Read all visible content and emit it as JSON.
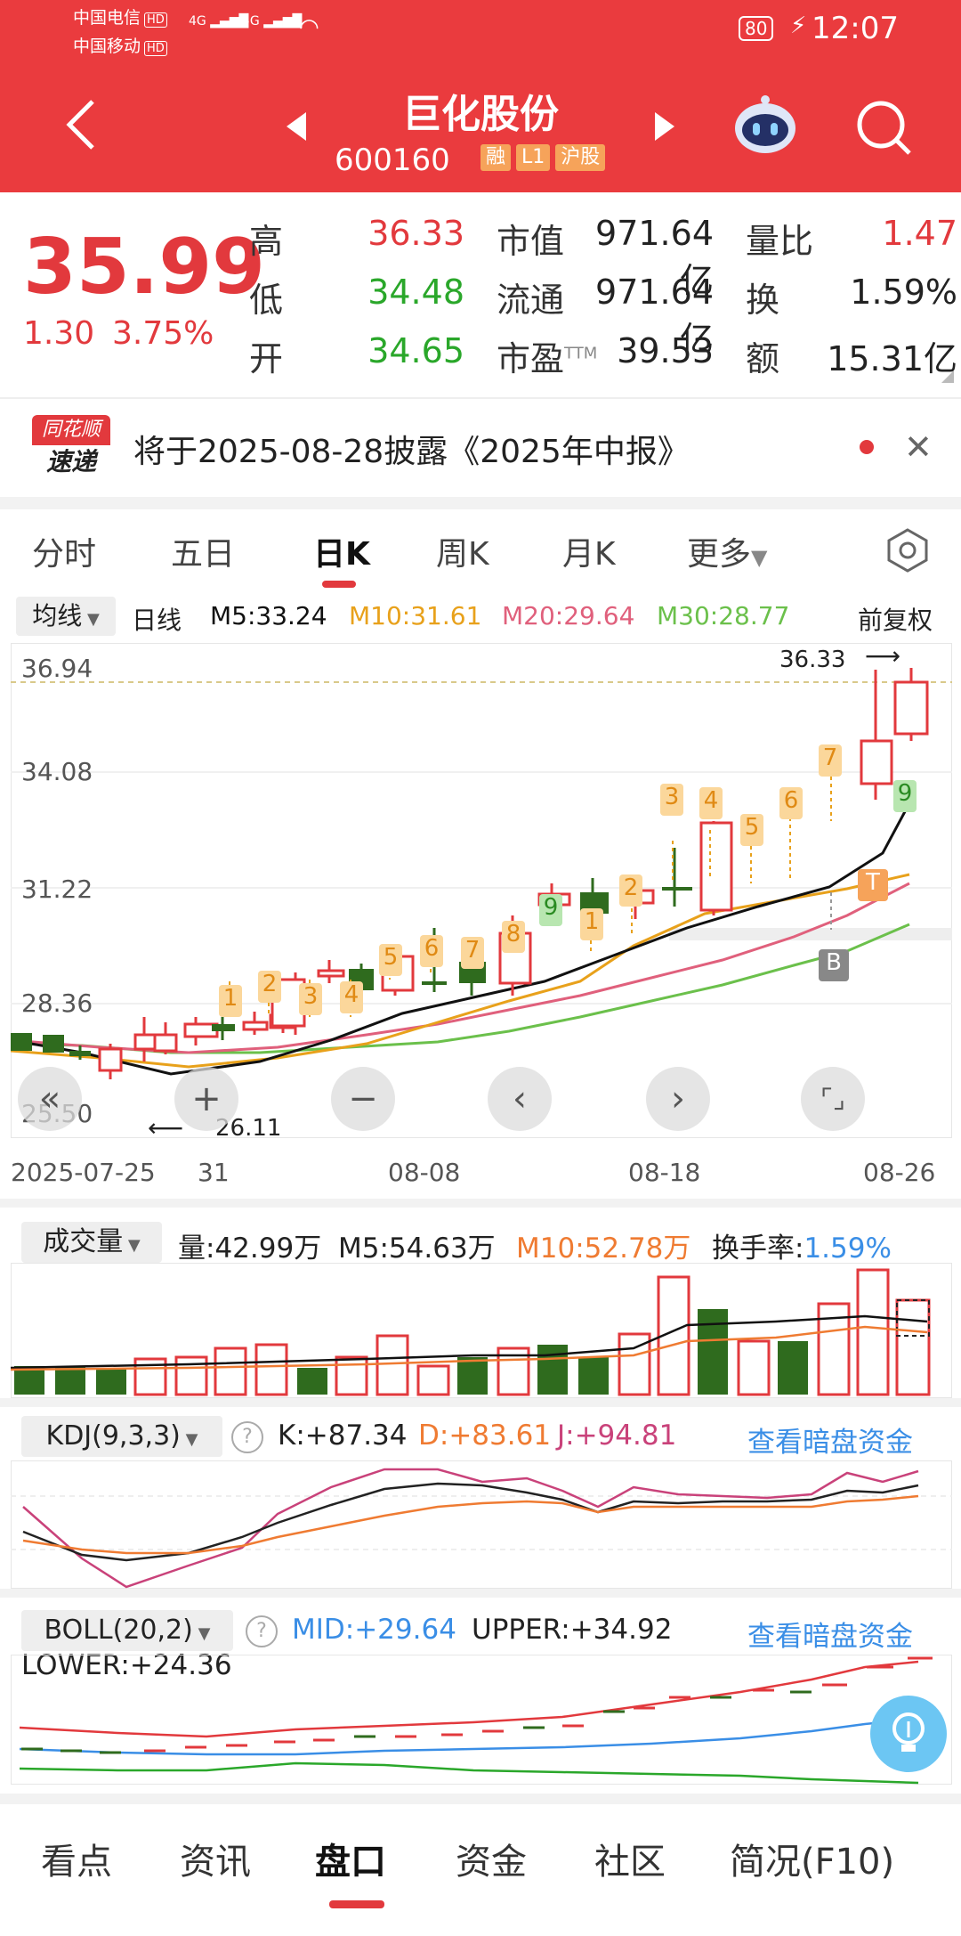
{
  "status": {
    "carrier1": "中国电信",
    "carrier2": "中国移动",
    "hd": "HD",
    "net1": "4G",
    "net2": "5G",
    "battery": "80",
    "time": "12:07"
  },
  "header": {
    "title": "巨化股份",
    "code": "600160",
    "tags": [
      "融",
      "L1",
      "沪股"
    ]
  },
  "quote": {
    "price": "35.99",
    "change": "1.30",
    "change_pct": "3.75%",
    "high_label": "高",
    "high": "36.33",
    "low_label": "低",
    "low": "34.48",
    "open_label": "开",
    "open": "34.65",
    "mktcap_label": "市值",
    "mktcap": "971.64亿",
    "float_label": "流通",
    "float": "971.64亿",
    "pe_label": "市盈",
    "pe_sup": "TTM",
    "pe": "39.53",
    "volratio_label": "量比",
    "volratio": "1.47",
    "turnover_label": "换",
    "turnover": "1.59%",
    "amount_label": "额",
    "amount": "15.31亿"
  },
  "news": {
    "logo1": "同花顺",
    "logo2": "速递",
    "text": "将于2025-08-28披露《2025年中报》"
  },
  "ktabs": [
    "分时",
    "五日",
    "日K",
    "周K",
    "月K",
    "更多"
  ],
  "legend": {
    "ma_btn": "均线",
    "period": "日线",
    "m5": "M5:33.24",
    "m10": "M10:31.61",
    "m20": "M20:29.64",
    "m30": "M30:28.77",
    "adjust": "前复权"
  },
  "price_axis": [
    "36.94",
    "34.08",
    "31.22",
    "28.36",
    "25.50"
  ],
  "markers": {
    "max": "36.33",
    "min": "26.11",
    "labels": [
      "1",
      "2",
      "3",
      "4",
      "5",
      "6",
      "7",
      "8",
      "9",
      "1",
      "2",
      "3",
      "4",
      "5",
      "6",
      "7",
      "9",
      "T",
      "B"
    ]
  },
  "date_axis": [
    "2025-07-25",
    "31",
    "08-08",
    "08-18",
    "08-26"
  ],
  "volume": {
    "btn": "成交量",
    "vol": "量:42.99万",
    "m5": "M5:54.63万",
    "m10": "M10:52.78万",
    "turn_label": "换手率:",
    "turn": "1.59%"
  },
  "kdj": {
    "btn": "KDJ(9,3,3)",
    "k": "K:+87.34",
    "d": "D:+83.61",
    "j": "J:+94.81",
    "link": "查看暗盘资金"
  },
  "boll": {
    "btn": "BOLL(20,2)",
    "mid": "MID:+29.64",
    "upper": "UPPER:+34.92",
    "lower": "LOWER:+24.36",
    "link": "查看暗盘资金"
  },
  "bottom_tabs": [
    "看点",
    "资讯",
    "盘口",
    "资金",
    "社区",
    "简况(F10)"
  ],
  "colors": {
    "brand": "#ea3b3e",
    "up": "#e2393d",
    "down": "#2f6b1e",
    "ma5": "#111111",
    "ma10": "#e8a11b",
    "ma20": "#e0607c",
    "ma30": "#6bc04b"
  }
}
